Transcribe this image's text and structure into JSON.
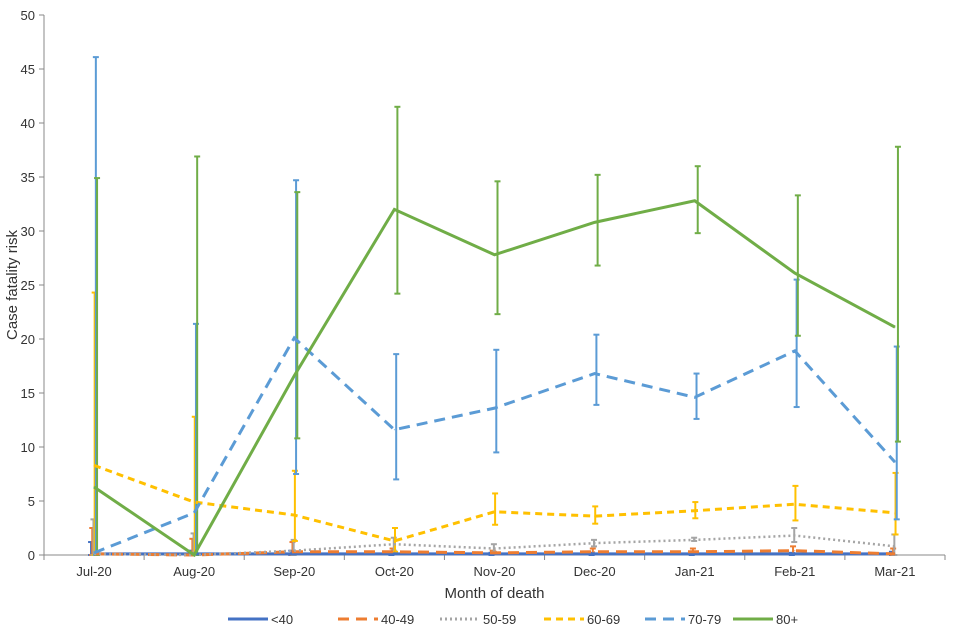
{
  "chart_data": {
    "type": "line",
    "xlabel": "Month of death",
    "ylabel": "Case fatality risk",
    "ylim": [
      0,
      50
    ],
    "yticks": [
      "0",
      "5",
      "10",
      "15",
      "20",
      "25",
      "30",
      "35",
      "40",
      "45",
      "50"
    ],
    "categories": [
      "Jul-20",
      "Aug-20",
      "Sep-20",
      "Oct-20",
      "Nov-20",
      "Dec-20",
      "Jan-21",
      "Feb-21",
      "Mar-21"
    ],
    "legend_position": "bottom",
    "series": [
      {
        "name": "<40",
        "color": "#4472c4",
        "dash": "solid",
        "values": [
          0.1,
          0.1,
          0.1,
          0.1,
          0.1,
          0.1,
          0.1,
          0.1,
          0.1
        ],
        "err": [
          [
            0,
            1.2
          ],
          [
            0,
            0.4
          ],
          [
            0,
            0.4
          ],
          [
            0,
            0.2
          ],
          [
            0,
            0.2
          ],
          [
            0,
            0.2
          ],
          [
            0,
            0.2
          ],
          [
            0,
            0.2
          ],
          [
            0,
            0.3
          ]
        ]
      },
      {
        "name": "40-49",
        "color": "#ed7d31",
        "dash": "long",
        "values": [
          0.1,
          0,
          0.3,
          0.3,
          0.2,
          0.3,
          0.3,
          0.4,
          0.1
        ],
        "err": [
          [
            0,
            2.5
          ],
          [
            0,
            1.5
          ],
          [
            0,
            1.2
          ],
          [
            0.1,
            0.6
          ],
          [
            0.1,
            0.4
          ],
          [
            0.1,
            0.6
          ],
          [
            0.1,
            0.6
          ],
          [
            0.1,
            0.8
          ],
          [
            0,
            0.6
          ]
        ]
      },
      {
        "name": "50-59",
        "color": "#a5a5a5",
        "dash": "dot",
        "values": [
          0.1,
          0,
          0.4,
          1.0,
          0.6,
          1.1,
          1.4,
          1.8,
          0.8
        ],
        "err": [
          [
            0,
            3.3
          ],
          [
            0,
            2.0
          ],
          [
            0,
            1.4
          ],
          [
            0.4,
            1.6
          ],
          [
            0.3,
            1.0
          ],
          [
            0.8,
            1.4
          ],
          [
            1.3,
            1.6
          ],
          [
            1.2,
            2.5
          ],
          [
            0,
            1.9
          ]
        ]
      },
      {
        "name": "60-69",
        "color": "#ffc000",
        "dash": "short",
        "values": [
          8.3,
          4.9,
          3.7,
          1.3,
          4.0,
          3.6,
          4.1,
          4.7,
          3.9
        ],
        "err": [
          [
            0,
            24.3
          ],
          [
            0,
            12.8
          ],
          [
            1.3,
            7.8
          ],
          [
            0.3,
            2.5
          ],
          [
            2.8,
            5.7
          ],
          [
            2.9,
            4.5
          ],
          [
            3.4,
            4.9
          ],
          [
            3.2,
            6.4
          ],
          [
            1.9,
            7.6
          ]
        ]
      },
      {
        "name": "70-79",
        "color": "#5b9bd5",
        "dash": "long",
        "values": [
          0.2,
          3.9,
          20.1,
          11.6,
          13.6,
          16.8,
          14.6,
          18.9,
          8.6
        ],
        "err": [
          [
            0,
            46.1
          ],
          [
            0,
            21.4
          ],
          [
            7.5,
            34.7
          ],
          [
            7.0,
            18.6
          ],
          [
            9.5,
            19.0
          ],
          [
            13.9,
            20.4
          ],
          [
            12.6,
            16.8
          ],
          [
            13.7,
            25.5
          ],
          [
            3.3,
            19.3
          ]
        ]
      },
      {
        "name": "80+",
        "color": "#70ad47",
        "dash": "solid",
        "values": [
          6.3,
          0,
          16.6,
          32.0,
          27.8,
          30.8,
          32.8,
          26.1,
          21.1
        ],
        "err": [
          [
            0,
            34.9
          ],
          [
            0,
            36.9
          ],
          [
            10.8,
            33.6
          ],
          [
            24.2,
            41.5
          ],
          [
            22.3,
            34.6
          ],
          [
            26.8,
            35.2
          ],
          [
            29.8,
            36.0
          ],
          [
            20.3,
            33.3
          ],
          [
            10.5,
            37.8
          ]
        ]
      }
    ]
  }
}
